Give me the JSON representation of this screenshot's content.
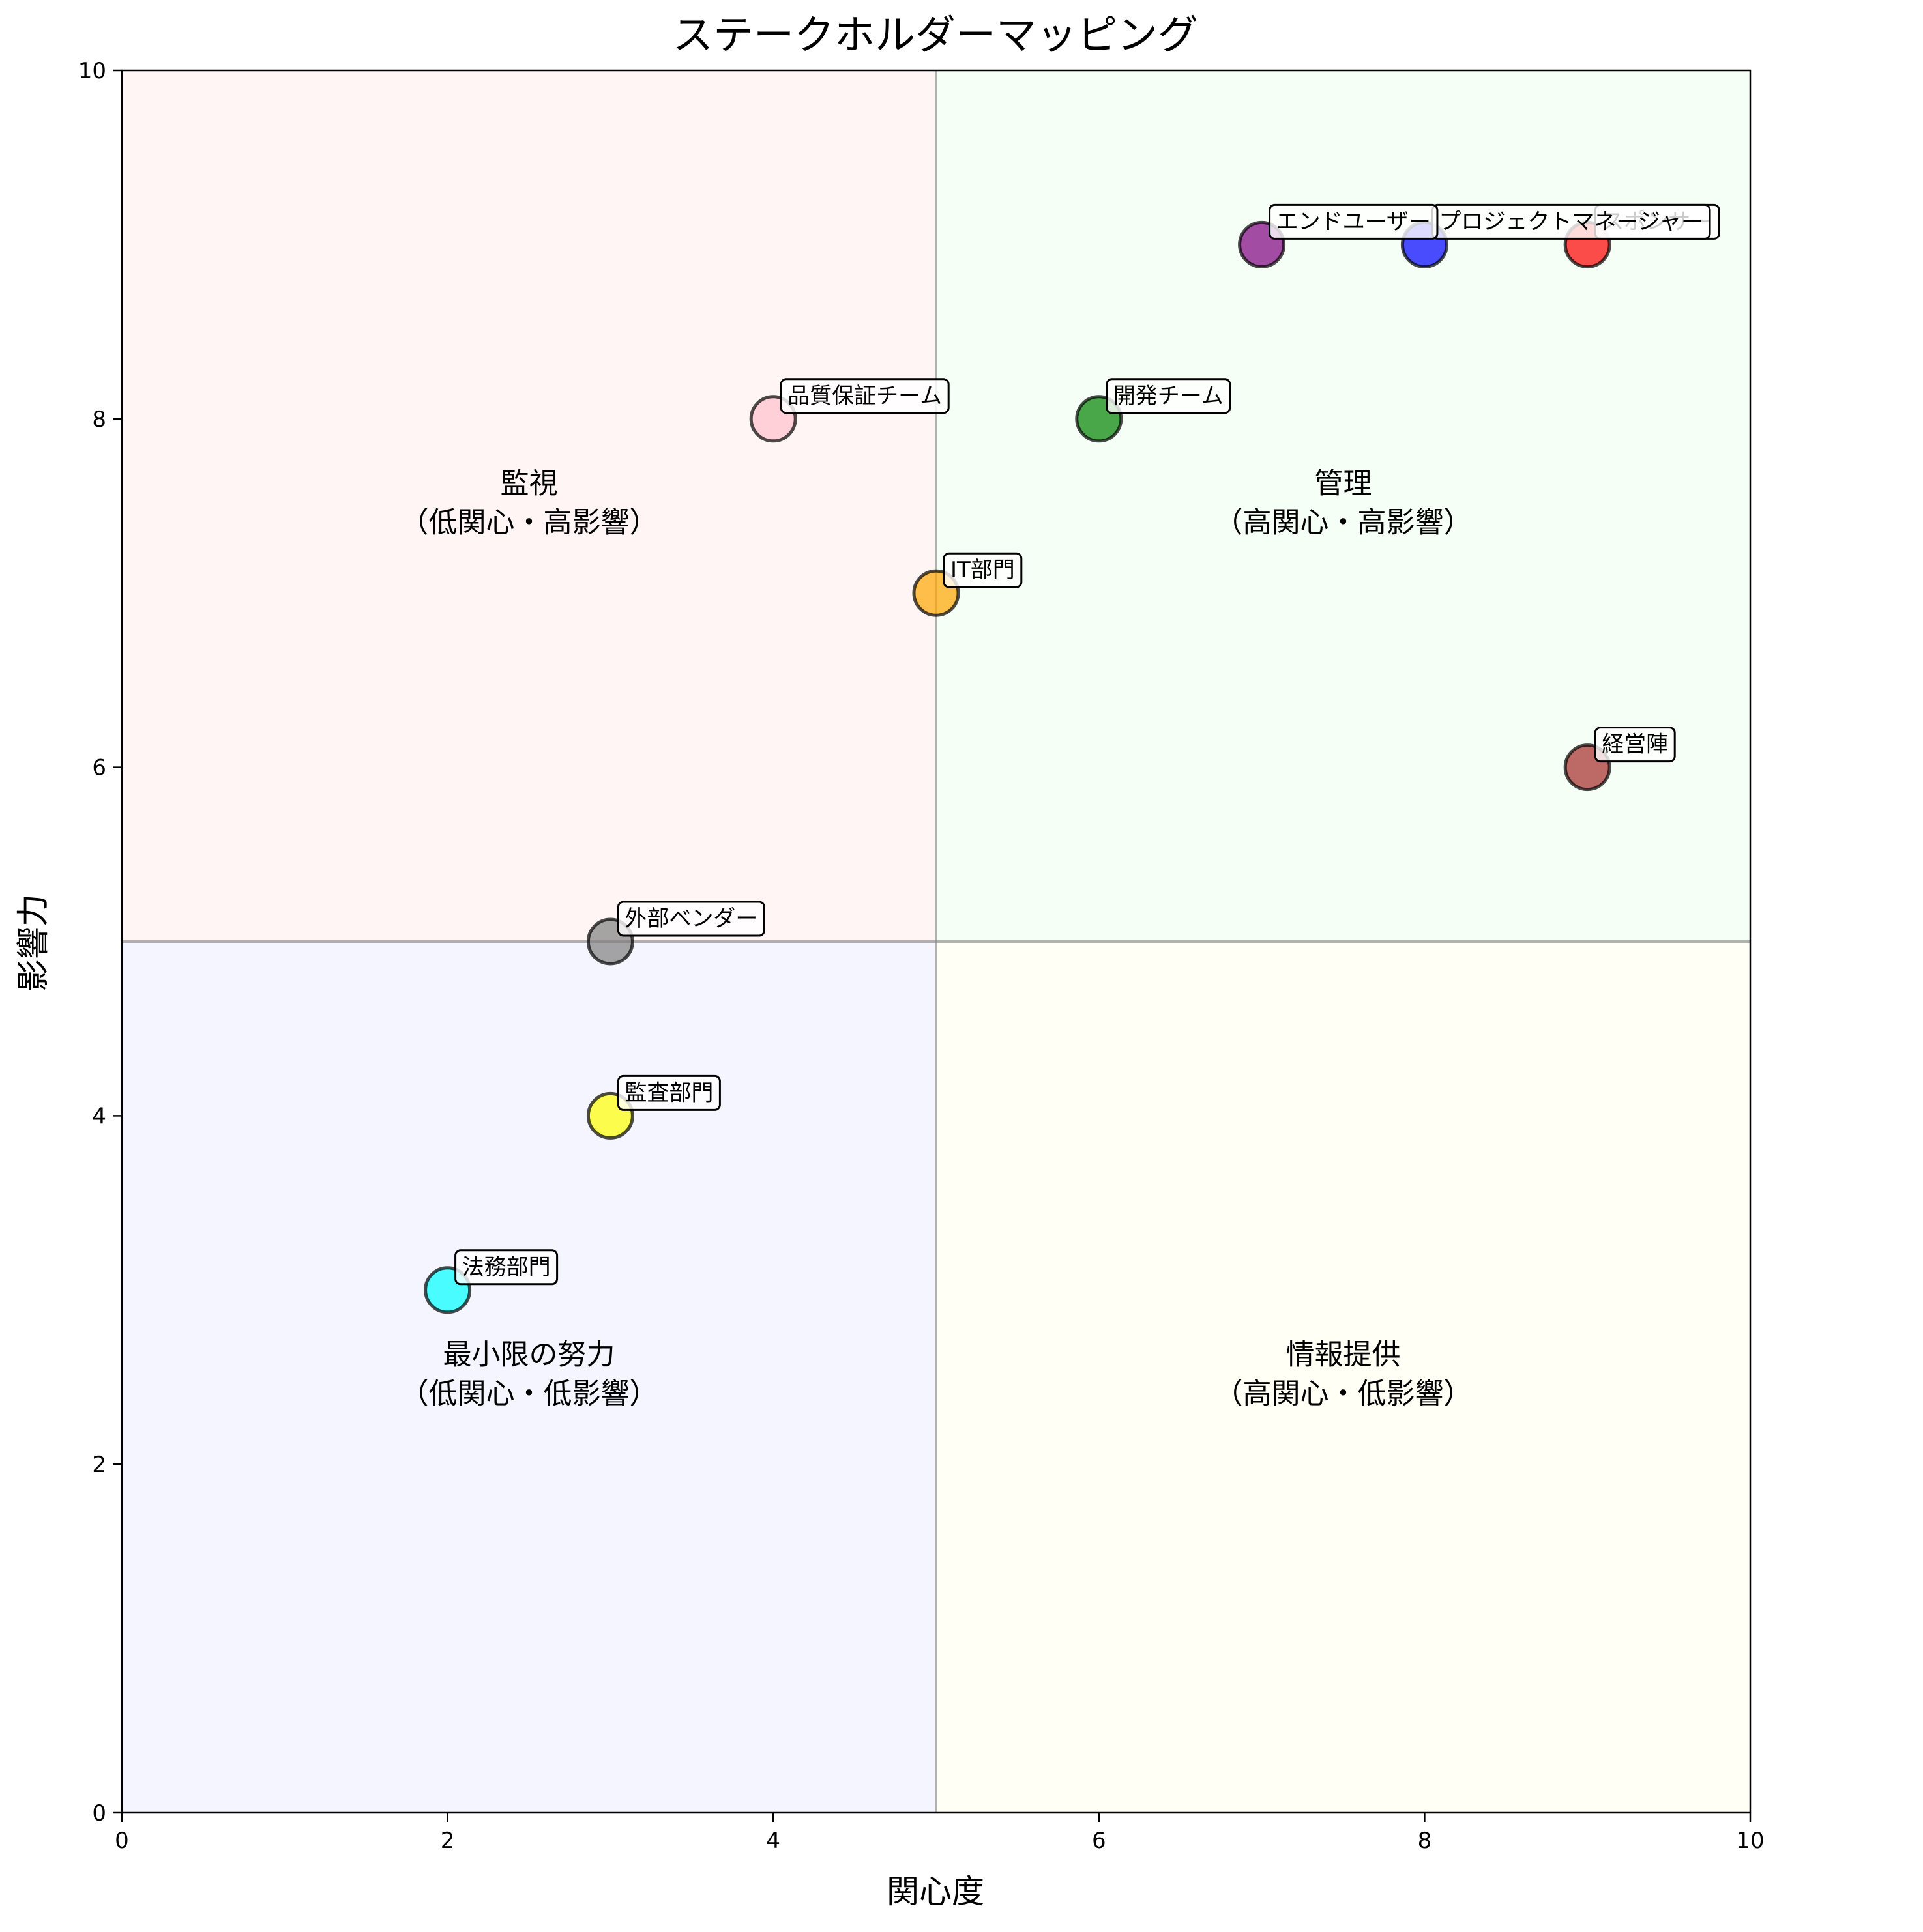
{
  "chart_data": {
    "type": "scatter",
    "title": "ステークホルダーマッピング",
    "xlabel": "関心度",
    "ylabel": "影響力",
    "xlim": [
      0,
      10
    ],
    "ylim": [
      0,
      10
    ],
    "xticks": [
      "0",
      "2",
      "4",
      "6",
      "8",
      "10"
    ],
    "yticks": [
      "0",
      "2",
      "4",
      "6",
      "8",
      "10"
    ],
    "grid": false,
    "divider": {
      "x": 5,
      "y": 5
    },
    "quadrants": [
      {
        "id": "monitor",
        "line1": "監視",
        "line2": "（低関心・高影響）",
        "color": "#ffcccc",
        "x_range": [
          0,
          5
        ],
        "y_range": [
          5,
          10
        ],
        "label_x": 2.5,
        "label_y": 7.5
      },
      {
        "id": "manage",
        "line1": "管理",
        "line2": "（高関心・高影響）",
        "color": "#ccffcc",
        "x_range": [
          5,
          10
        ],
        "y_range": [
          5,
          10
        ],
        "label_x": 7.5,
        "label_y": 7.5
      },
      {
        "id": "minimal",
        "line1": "最小限の努力",
        "line2": "（低関心・低影響）",
        "color": "#ccccff",
        "x_range": [
          0,
          5
        ],
        "y_range": [
          0,
          5
        ],
        "label_x": 2.5,
        "label_y": 2.5
      },
      {
        "id": "inform",
        "line1": "情報提供",
        "line2": "（高関心・低影響）",
        "color": "#ffffcc",
        "x_range": [
          5,
          10
        ],
        "y_range": [
          0,
          5
        ],
        "label_x": 7.5,
        "label_y": 2.5
      }
    ],
    "points": [
      {
        "label": "スポンサー",
        "x": 9,
        "y": 9,
        "color": "#ff0000"
      },
      {
        "label": "プロジェクトマネージャー",
        "x": 8,
        "y": 9,
        "color": "#0000ff"
      },
      {
        "label": "エンドユーザー",
        "x": 7,
        "y": 9,
        "color": "#800080"
      },
      {
        "label": "開発チーム",
        "x": 6,
        "y": 8,
        "color": "#008000"
      },
      {
        "label": "品質保証チーム",
        "x": 4,
        "y": 8,
        "color": "#ffc0cb"
      },
      {
        "label": "IT部門",
        "x": 5,
        "y": 7,
        "color": "#ffa500"
      },
      {
        "label": "経営陣",
        "x": 9,
        "y": 6,
        "color": "#a52a2a"
      },
      {
        "label": "外部ベンダー",
        "x": 3,
        "y": 5,
        "color": "#808080"
      },
      {
        "label": "監査部門",
        "x": 3,
        "y": 4,
        "color": "#ffff00"
      },
      {
        "label": "法務部門",
        "x": 2,
        "y": 3,
        "color": "#00ffff"
      }
    ]
  }
}
